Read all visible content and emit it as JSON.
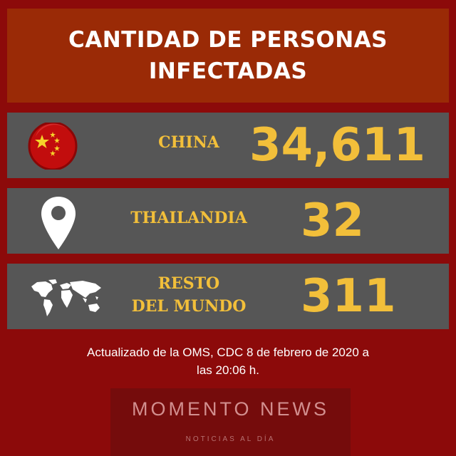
{
  "title": {
    "line1": "CANTIDAD DE PERSONAS",
    "line2": "INFECTADAS"
  },
  "rows": [
    {
      "label_lines": [
        "CHINA"
      ],
      "value": "34,611",
      "icon": "china-flag-icon"
    },
    {
      "label_lines": [
        "THAILANDIA"
      ],
      "value": "32",
      "icon": "location-pin-icon"
    },
    {
      "label_lines": [
        "RESTO",
        "DEL MUNDO"
      ],
      "value": "311",
      "icon": "world-map-icon"
    }
  ],
  "footer": {
    "line1": "Actualizado de la OMS, CDC 8 de febrero de 2020 a",
    "line2": "las 20:06 h."
  },
  "brand": {
    "name": "MOMENTO NEWS",
    "tagline": "NOTICIAS AL DÍA"
  },
  "colors": {
    "background": "#8c0a0a",
    "title_box": "#9a2a06",
    "row": "#565656",
    "accent": "#f2bf3a",
    "brand_box": "#750c0c"
  }
}
